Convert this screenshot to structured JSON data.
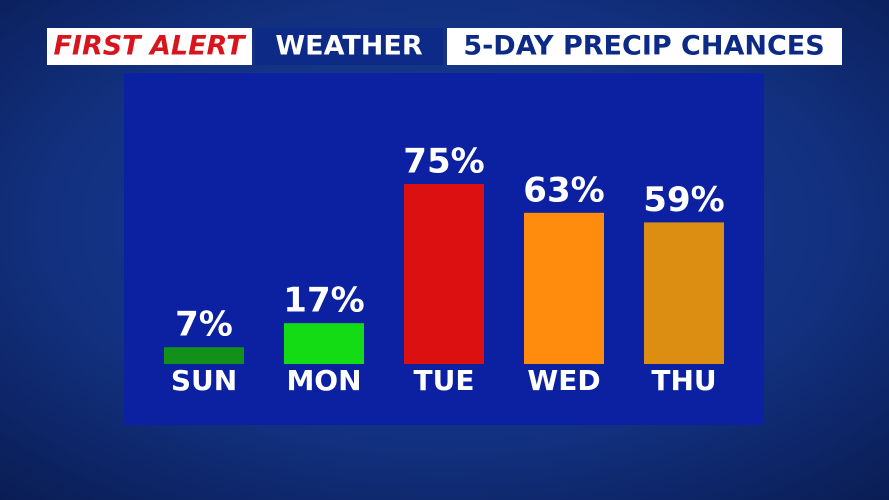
{
  "chart_data": {
    "type": "bar",
    "brand": "FIRST ALERT",
    "brand_section": "WEATHER",
    "title": "5-DAY PRECIP CHANCES",
    "categories": [
      "SUN",
      "MON",
      "TUE",
      "WED",
      "THU"
    ],
    "values": [
      7,
      17,
      75,
      63,
      59
    ],
    "value_labels": [
      "7%",
      "17%",
      "75%",
      "63%",
      "59%"
    ],
    "colors": [
      "#12901a",
      "#14dc14",
      "#dc1010",
      "#ff8c0c",
      "#dc8e12"
    ],
    "ylim": [
      0,
      100
    ]
  }
}
